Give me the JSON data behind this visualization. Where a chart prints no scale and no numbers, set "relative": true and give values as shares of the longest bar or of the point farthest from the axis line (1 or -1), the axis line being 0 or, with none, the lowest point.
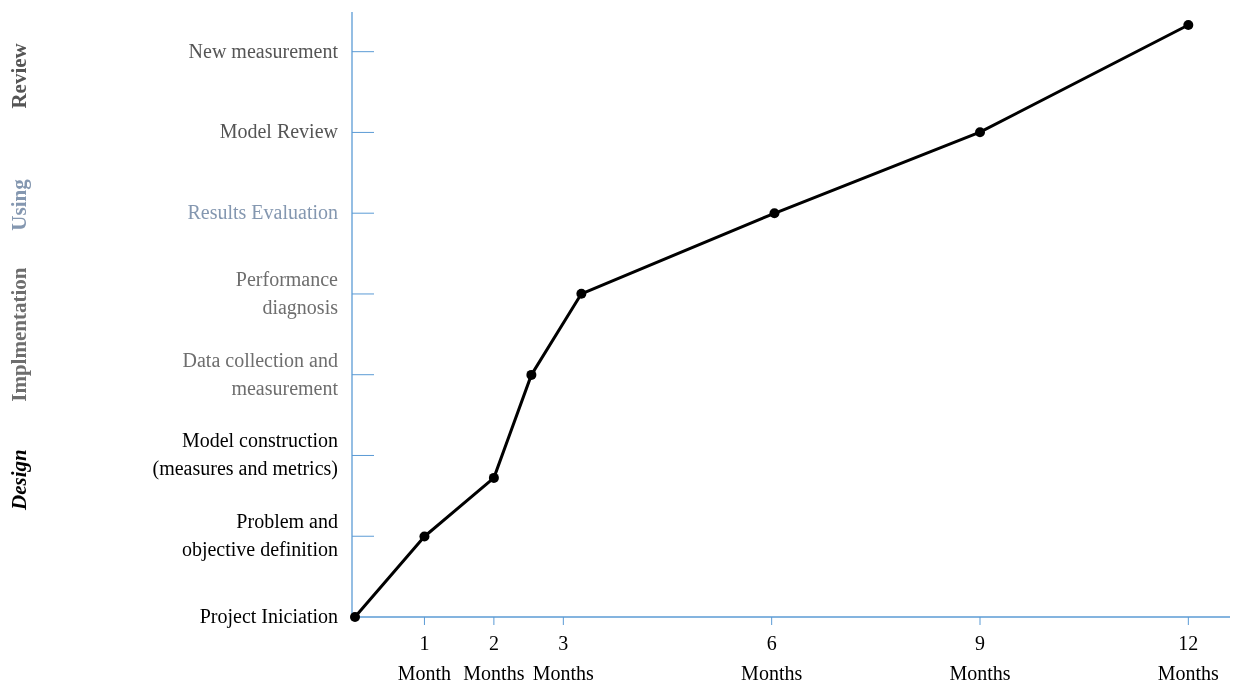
{
  "chart_data": {
    "type": "line",
    "relative": true,
    "x": [
      0,
      1,
      2,
      2.54,
      3.26,
      6.04,
      9,
      12
    ],
    "series": [
      {
        "color": "#000000",
        "values": [
          0,
          0.136,
          0.235,
          0.409,
          0.546,
          0.682,
          0.819,
          1
        ]
      }
    ],
    "xlim": [
      0,
      12.6
    ],
    "xticks": [
      {
        "value": 1,
        "label": "1\nMonth"
      },
      {
        "value": 2,
        "label": "2\nMonths"
      },
      {
        "value": 3,
        "label": "3\nMonths"
      },
      {
        "value": 6,
        "label": "6\nMonths"
      },
      {
        "value": 9,
        "label": "9\nMonths"
      },
      {
        "value": 12,
        "label": "12\nMonths"
      }
    ],
    "annotations": [
      "Review",
      "Using",
      "Implmentation",
      "Design",
      "Project Iniciation",
      "Problem and\nobjective definition",
      "Model construction\n(measures and metrics)",
      "Data collection and\nmeasurement",
      "Performance\ndiagnosis",
      "Results Evaluation",
      "Model Review",
      "New measurement"
    ],
    "marker": "circle",
    "line_style": "solid",
    "grid": false
  }
}
